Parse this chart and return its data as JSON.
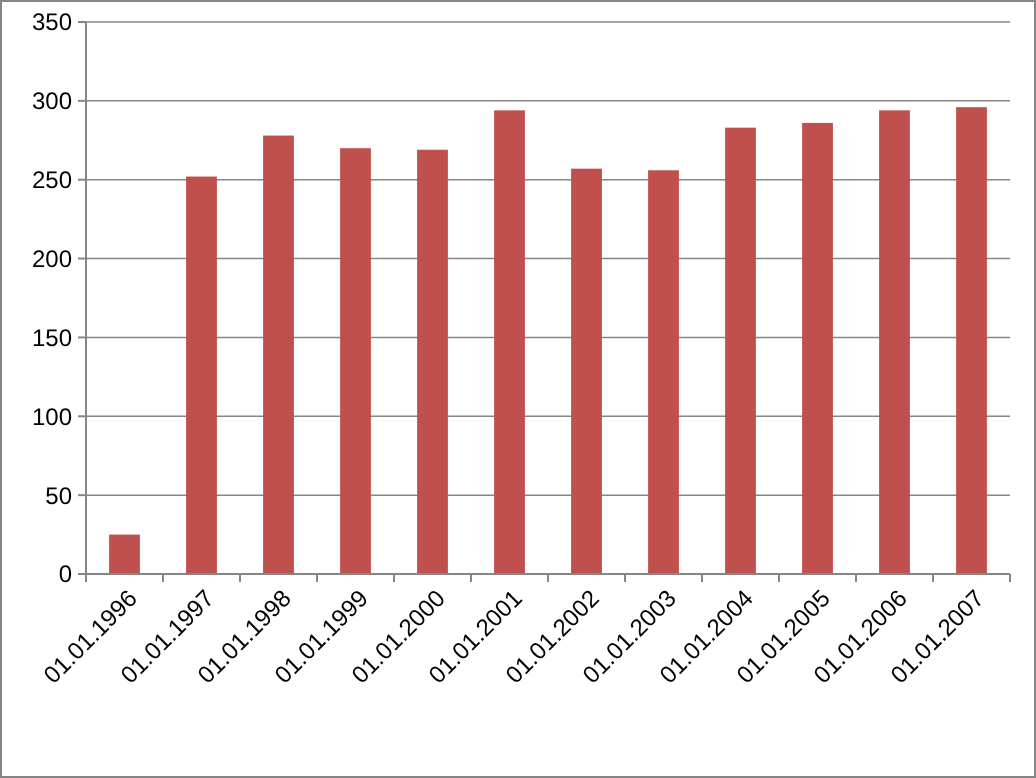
{
  "chart_data": {
    "type": "bar",
    "categories": [
      "01.01.1996",
      "01.01.1997",
      "01.01.1998",
      "01.01.1999",
      "01.01.2000",
      "01.01.2001",
      "01.01.2002",
      "01.01.2003",
      "01.01.2004",
      "01.01.2005",
      "01.01.2006",
      "01.01.2007"
    ],
    "values": [
      25,
      252,
      278,
      270,
      269,
      294,
      257,
      256,
      283,
      286,
      294,
      296
    ],
    "color": "#c0504d",
    "ylim": [
      0,
      350
    ],
    "yticks": [
      0,
      50,
      100,
      150,
      200,
      250,
      300,
      350
    ],
    "grid": "y"
  }
}
